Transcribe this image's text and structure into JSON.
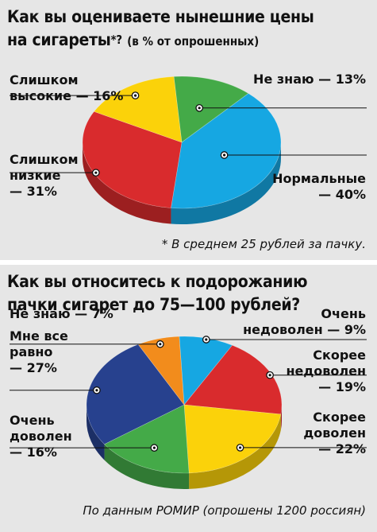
{
  "charts": [
    {
      "title_line1": "Как вы оцениваете нынешние цены",
      "title_line2": "на сигареты",
      "title_mark": "*?",
      "subtitle": "(в % от опрошенных)",
      "footnote": "* В среднем 25 рублей за пачку."
    },
    {
      "title_line1": "Как вы относитесь к подорожанию",
      "title_line2": "пачки сигарет до 75—100 рублей?",
      "footnote": "По данным РОМИР (опрошены 1200 россиян)"
    }
  ],
  "chart_data": [
    {
      "type": "pie",
      "title": "Как вы оцениваете нынешние цены на сигареты*? (в % от опрошенных)",
      "unit": "%",
      "slices": [
        {
          "label": "Не знаю — 13%",
          "value": 13,
          "color": "#44aa48"
        },
        {
          "label": "Нормальные — 40%",
          "value": 40,
          "color": "#16a7e2"
        },
        {
          "label": "Слишком низкие — 31%",
          "value": 31,
          "color": "#d92b2d"
        },
        {
          "label": "Слишком высокие — 16%",
          "value": 16,
          "color": "#fbd20a"
        }
      ]
    },
    {
      "type": "pie",
      "title": "Как вы относитесь к подорожанию пачки сигарет до 75—100 рублей?",
      "unit": "%",
      "slices": [
        {
          "label": "Очень недоволен — 9%",
          "value": 9,
          "color": "#16a7e2"
        },
        {
          "label": "Скорее недоволен — 19%",
          "value": 19,
          "color": "#d92b2d"
        },
        {
          "label": "Скорее доволен — 22%",
          "value": 22,
          "color": "#fbd20a"
        },
        {
          "label": "Очень доволен — 16%",
          "value": 16,
          "color": "#44aa48"
        },
        {
          "label": "Мне все равно — 27%",
          "value": 27,
          "color": "#27418e"
        },
        {
          "label": "Не знаю — 7%",
          "value": 7,
          "color": "#f28c1c"
        }
      ]
    }
  ]
}
